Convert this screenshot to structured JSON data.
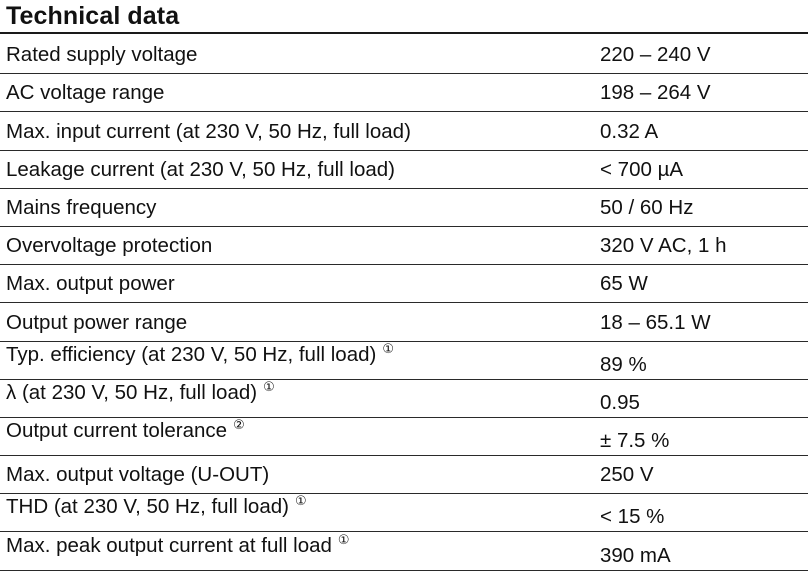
{
  "title": "Technical data",
  "rows": [
    {
      "label": "Rated supply voltage",
      "value": "220 – 240 V",
      "note": ""
    },
    {
      "label": "AC voltage range",
      "value": "198 – 264 V",
      "note": ""
    },
    {
      "label": "Max. input current (at 230 V, 50 Hz, full load)",
      "value": "0.32 A",
      "note": ""
    },
    {
      "label": "Leakage current (at 230 V, 50 Hz, full load)",
      "value": "< 700 µA",
      "note": ""
    },
    {
      "label": "Mains frequency",
      "value": "50 / 60 Hz",
      "note": ""
    },
    {
      "label": "Overvoltage protection",
      "value": "320 V AC, 1 h",
      "note": ""
    },
    {
      "label": "Max. output power",
      "value": "65 W",
      "note": ""
    },
    {
      "label": "Output power range",
      "value": "18 – 65.1 W",
      "note": ""
    },
    {
      "label": "Typ. efficiency (at 230 V, 50 Hz, full load)",
      "value": "89 %",
      "note": "①"
    },
    {
      "label": "λ (at 230 V, 50 Hz, full load)",
      "value": "0.95",
      "note": "①"
    },
    {
      "label": "Output current tolerance",
      "value": "± 7.5 %",
      "note": "②"
    },
    {
      "label": "Max. output voltage (U-OUT)",
      "value": "250 V",
      "note": ""
    },
    {
      "label": "THD (at 230 V, 50 Hz, full load)",
      "value": "< 15 %",
      "note": "①"
    },
    {
      "label": "Max. peak output current at full load",
      "value": "390 mA",
      "note": "①"
    }
  ]
}
